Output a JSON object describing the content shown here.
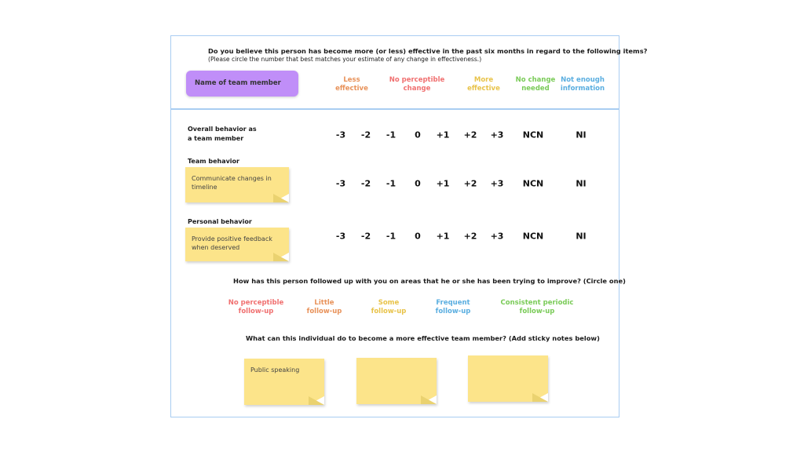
{
  "colors": {
    "frame": "#a9cdf2",
    "purple": "#c08ef8",
    "sticky": "#fce48a",
    "orange": "#e8925a",
    "red": "#f07070",
    "yellow": "#e8c34a",
    "green": "#7acb58",
    "blue": "#5aaee0"
  },
  "header": {
    "question": "Do you believe this person has become more (or less) effective in the past six months in regard to the following items?",
    "instruction": "(Please circle the number that best matches your estimate of any change in effectiveness.)",
    "name_box": "Name of team member",
    "scale_labels": [
      {
        "line1": "Less",
        "line2": "effective",
        "color": "#e8925a"
      },
      {
        "line1": "No perceptible",
        "line2": "change",
        "color": "#f07070"
      },
      {
        "line1": "More",
        "line2": "effective",
        "color": "#e8c34a"
      },
      {
        "line1": "No change",
        "line2": "needed",
        "color": "#7acb58"
      },
      {
        "line1": "Not enough",
        "line2": "information",
        "color": "#5aaee0"
      }
    ]
  },
  "scale": [
    "-3",
    "-2",
    "-1",
    "0",
    "+1",
    "+2",
    "+3",
    "NCN",
    "NI"
  ],
  "rows": [
    {
      "title_line1": "Overall behavior as",
      "title_line2": "a team member"
    },
    {
      "title": "Team behavior",
      "sticky": "Communicate changes in timeline"
    },
    {
      "title": "Personal behavior",
      "sticky": "Provide positive feedback when deserved"
    }
  ],
  "followup": {
    "question": "How has this person followed up with you on areas that he or she has been trying to improve? (Circle one)",
    "options": [
      {
        "line1": "No perceptible",
        "line2": "follow-up",
        "color": "#f07070"
      },
      {
        "line1": "Little",
        "line2": "follow-up",
        "color": "#e8925a"
      },
      {
        "line1": "Some",
        "line2": "follow-up",
        "color": "#e8c34a"
      },
      {
        "line1": "Frequent",
        "line2": "follow-up",
        "color": "#5aaee0"
      },
      {
        "line1": "Consistent periodic",
        "line2": "follow-up",
        "color": "#7acb58"
      }
    ]
  },
  "improve": {
    "question": "What can this individual do to become a more effective team member? (Add sticky notes below)",
    "notes": [
      "Public speaking",
      "",
      ""
    ]
  }
}
